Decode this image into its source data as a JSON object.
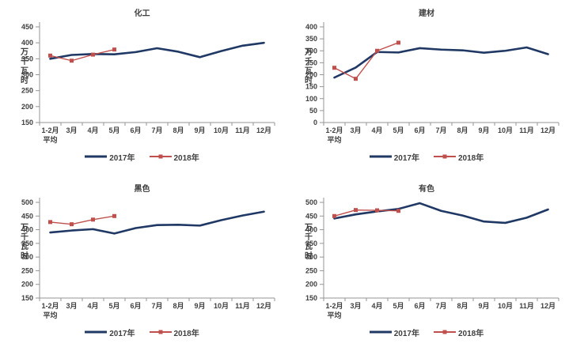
{
  "page": {
    "background": "#ffffff"
  },
  "colors": {
    "series_2017": "#1f3864",
    "series_2018": "#c0504d",
    "axis_line": "#969696",
    "text": "#3f3f3f"
  },
  "legend": {
    "label_2017": "2017年",
    "label_2018": "2018年"
  },
  "chart_data": [
    {
      "type": "line",
      "title": "化工",
      "ylabel": "万千瓦时",
      "ylim": [
        150,
        450
      ],
      "ytick_step": 50,
      "grid": false,
      "legend_position": "bottom",
      "categories": [
        [
          "1-2月",
          "平均"
        ],
        [
          "3月"
        ],
        [
          "4月"
        ],
        [
          "5月"
        ],
        [
          "6月"
        ],
        [
          "7月"
        ],
        [
          "8月"
        ],
        [
          "9月"
        ],
        [
          "10月"
        ],
        [
          "11月"
        ],
        [
          "12月"
        ]
      ],
      "series": [
        {
          "name": "2017年",
          "color": "#1f3864",
          "marker": false,
          "values": [
            350,
            362,
            365,
            364,
            371,
            383,
            372,
            355,
            374,
            391,
            400
          ]
        },
        {
          "name": "2018年",
          "color": "#c0504d",
          "marker": true,
          "values": [
            360,
            344,
            363,
            379
          ]
        }
      ]
    },
    {
      "type": "line",
      "title": "建材",
      "ylabel": "万千瓦时",
      "ylim": [
        0,
        400
      ],
      "ytick_step": 50,
      "grid": false,
      "legend_position": "bottom",
      "categories": [
        [
          "1-2月",
          "平均"
        ],
        [
          "3月"
        ],
        [
          "4月"
        ],
        [
          "5月"
        ],
        [
          "6月"
        ],
        [
          "7月"
        ],
        [
          "8月"
        ],
        [
          "9月"
        ],
        [
          "10月"
        ],
        [
          "11月"
        ],
        [
          "12月"
        ]
      ],
      "series": [
        {
          "name": "2017年",
          "color": "#1f3864",
          "marker": false,
          "values": [
            188,
            230,
            295,
            293,
            311,
            305,
            302,
            292,
            300,
            314,
            286
          ]
        },
        {
          "name": "2018年",
          "color": "#c0504d",
          "marker": true,
          "values": [
            229,
            183,
            300,
            334
          ]
        }
      ]
    },
    {
      "type": "line",
      "title": "黑色",
      "ylabel": "万千瓦时",
      "ylim": [
        150,
        500
      ],
      "ytick_step": 50,
      "grid": false,
      "legend_position": "bottom",
      "categories": [
        [
          "1-2月",
          "平均"
        ],
        [
          "3月"
        ],
        [
          "4月"
        ],
        [
          "5月"
        ],
        [
          "6月"
        ],
        [
          "7月"
        ],
        [
          "8月"
        ],
        [
          "9月"
        ],
        [
          "10月"
        ],
        [
          "11月"
        ],
        [
          "12月"
        ]
      ],
      "series": [
        {
          "name": "2017年",
          "color": "#1f3864",
          "marker": false,
          "values": [
            390,
            397,
            402,
            386,
            406,
            417,
            418,
            415,
            435,
            452,
            466
          ]
        },
        {
          "name": "2018年",
          "color": "#c0504d",
          "marker": true,
          "values": [
            428,
            420,
            437,
            450
          ]
        }
      ]
    },
    {
      "type": "line",
      "title": "有色",
      "ylabel": "万千瓦时",
      "ylim": [
        150,
        500
      ],
      "ytick_step": 50,
      "grid": false,
      "legend_position": "bottom",
      "categories": [
        [
          "1-2月",
          "平均"
        ],
        [
          "3月"
        ],
        [
          "4月"
        ],
        [
          "5月"
        ],
        [
          "6月"
        ],
        [
          "7月"
        ],
        [
          "8月"
        ],
        [
          "9月"
        ],
        [
          "10月"
        ],
        [
          "11月"
        ],
        [
          "12月"
        ]
      ],
      "series": [
        {
          "name": "2017年",
          "color": "#1f3864",
          "marker": false,
          "values": [
            441,
            456,
            467,
            476,
            497,
            469,
            452,
            430,
            425,
            444,
            474
          ]
        },
        {
          "name": "2018年",
          "color": "#c0504d",
          "marker": true,
          "values": [
            450,
            472,
            471,
            469
          ]
        }
      ]
    }
  ]
}
